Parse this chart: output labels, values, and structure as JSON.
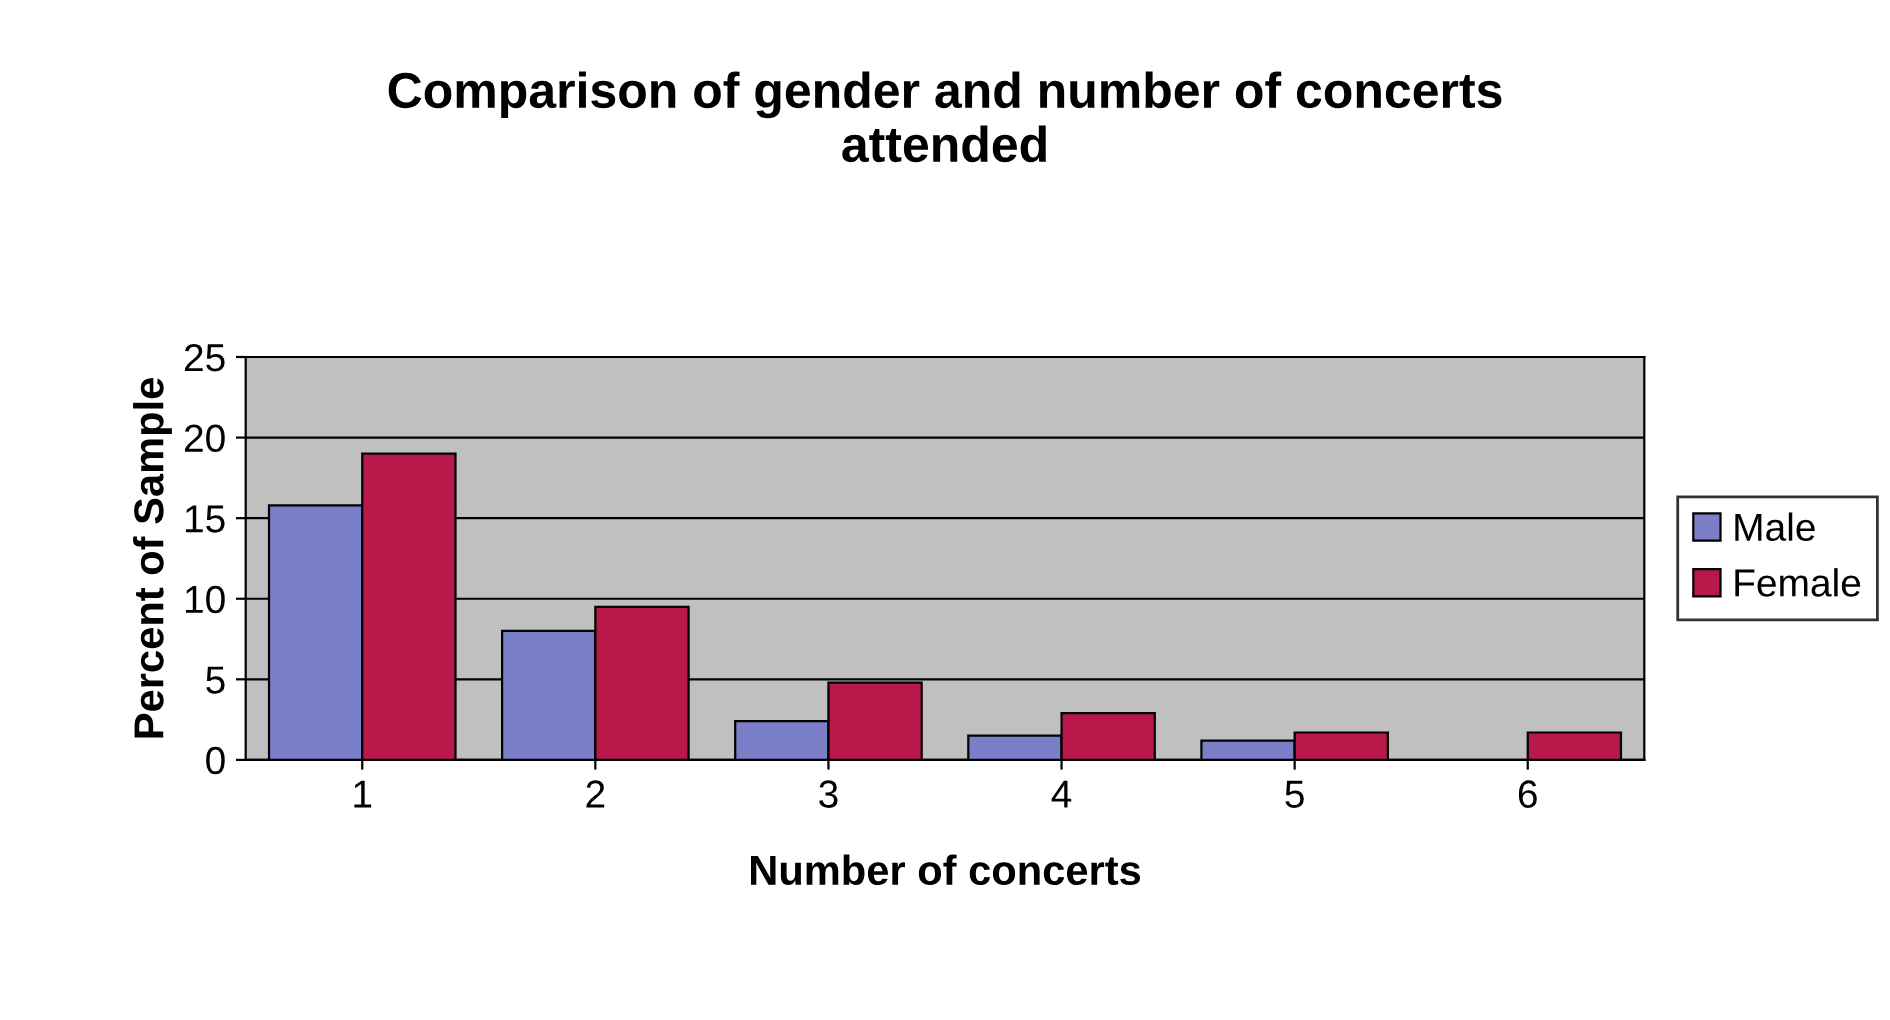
{
  "chart_data": {
    "type": "bar",
    "title": "Comparison of gender and number of concerts\nattended",
    "xlabel": "Number of concerts",
    "ylabel": "Percent of Sample",
    "categories": [
      "1",
      "2",
      "3",
      "4",
      "5",
      "6"
    ],
    "series": [
      {
        "name": "Male",
        "color": "#7b7fc8",
        "values": [
          15.8,
          8,
          2.4,
          1.5,
          1.2,
          null
        ]
      },
      {
        "name": "Female",
        "color": "#b8184a",
        "values": [
          19,
          9.5,
          4.8,
          2.9,
          1.7,
          1.7
        ]
      }
    ],
    "ylim": [
      0,
      25
    ],
    "yticks": [
      0,
      5,
      10,
      15,
      20,
      25
    ],
    "grid": "y",
    "legend": "right"
  }
}
